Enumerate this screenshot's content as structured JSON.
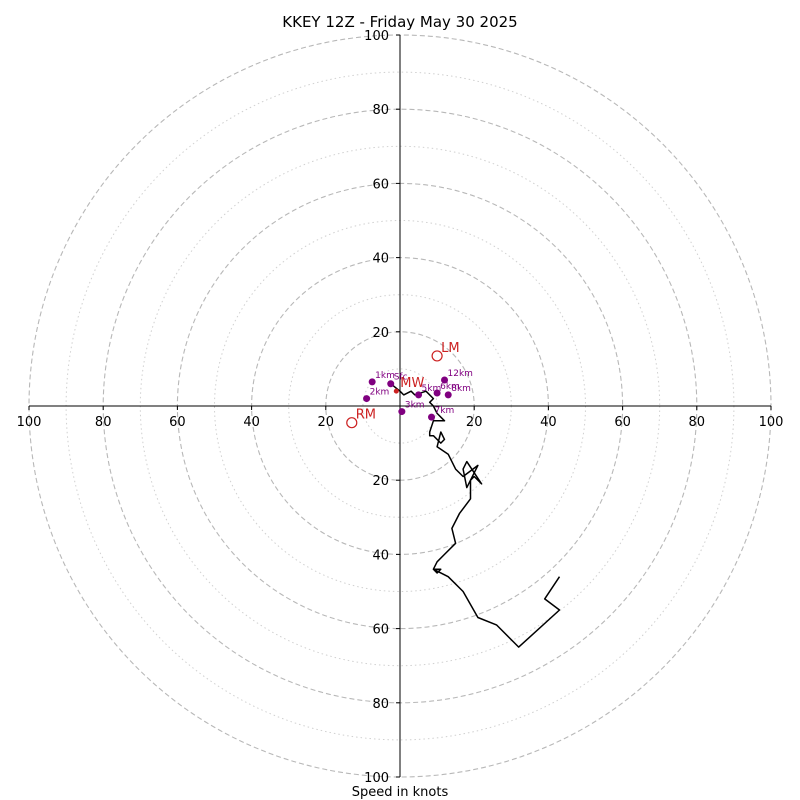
{
  "chart_data": {
    "type": "hodograph",
    "title": "KKEY 12Z - Friday May 30 2025",
    "xlabel": "Speed in knots",
    "xlim": [
      -100,
      100
    ],
    "ylim": [
      -100,
      100
    ],
    "ring_major": [
      20,
      40,
      60,
      80,
      100
    ],
    "ring_minor": [
      10,
      30,
      50,
      70,
      90
    ],
    "xticks": [
      -100,
      -80,
      -60,
      -40,
      -20,
      20,
      40,
      60,
      80,
      100
    ],
    "xtick_labels": [
      "100",
      "80",
      "60",
      "40",
      "20",
      "20",
      "40",
      "60",
      "80",
      "100"
    ],
    "yticks": [
      100,
      80,
      60,
      40,
      20,
      -20,
      -40,
      -60,
      -80,
      -100
    ],
    "ytick_labels": [
      "100",
      "80",
      "60",
      "40",
      "20",
      "20",
      "40",
      "60",
      "80",
      "100"
    ],
    "profile": {
      "u": [
        -2.5,
        0,
        1,
        3,
        4,
        7,
        9,
        8,
        9,
        10,
        12,
        9,
        8,
        8,
        9,
        11,
        12,
        11,
        10,
        13,
        15,
        17,
        21,
        18,
        17,
        18,
        22,
        20,
        19,
        19,
        16,
        14,
        15,
        12,
        10,
        9,
        11,
        10,
        9,
        13,
        17,
        21,
        26,
        32,
        43,
        39,
        43
      ],
      "v": [
        6,
        4,
        3,
        4,
        3,
        4,
        2,
        1,
        0,
        -2,
        -4,
        -4,
        -7,
        -8,
        -8,
        -10,
        -9,
        -7,
        -11,
        -13,
        -17,
        -19,
        -16,
        -22,
        -17,
        -15,
        -21,
        -19,
        -20,
        -25,
        -29,
        -33,
        -37,
        -40,
        -42,
        -44,
        -44,
        -45,
        -44,
        -46,
        -50,
        -57,
        -59,
        -65,
        -55,
        -52,
        -46
      ]
    },
    "height_points": [
      {
        "label": "Sfc",
        "u": -2.5,
        "v": 6,
        "color": "#800080"
      },
      {
        "label": "1km",
        "u": -7.5,
        "v": 6.5,
        "color": "#800080"
      },
      {
        "label": "2km",
        "u": -9,
        "v": 2,
        "color": "#800080"
      },
      {
        "label": "3km",
        "u": 0.5,
        "v": -1.5,
        "color": "#800080"
      },
      {
        "label": "5km",
        "u": 5,
        "v": 3,
        "color": "#800080"
      },
      {
        "label": "6km",
        "u": 10,
        "v": 3.5,
        "color": "#800080"
      },
      {
        "label": "7km",
        "u": 8.5,
        "v": -3,
        "color": "#800080"
      },
      {
        "label": "8km",
        "u": 13,
        "v": 3,
        "color": "#800080"
      },
      {
        "label": "12km",
        "u": 12,
        "v": 7,
        "color": "#800080"
      }
    ],
    "motion_markers": [
      {
        "label": "LM",
        "u": 10,
        "v": 13.5,
        "color": "#cc2222"
      },
      {
        "label": "RM",
        "u": -13,
        "v": -4.5,
        "color": "#cc2222"
      },
      {
        "label": "MW",
        "u": -1,
        "v": 4,
        "color": "#cc2222"
      }
    ],
    "grid": true
  }
}
